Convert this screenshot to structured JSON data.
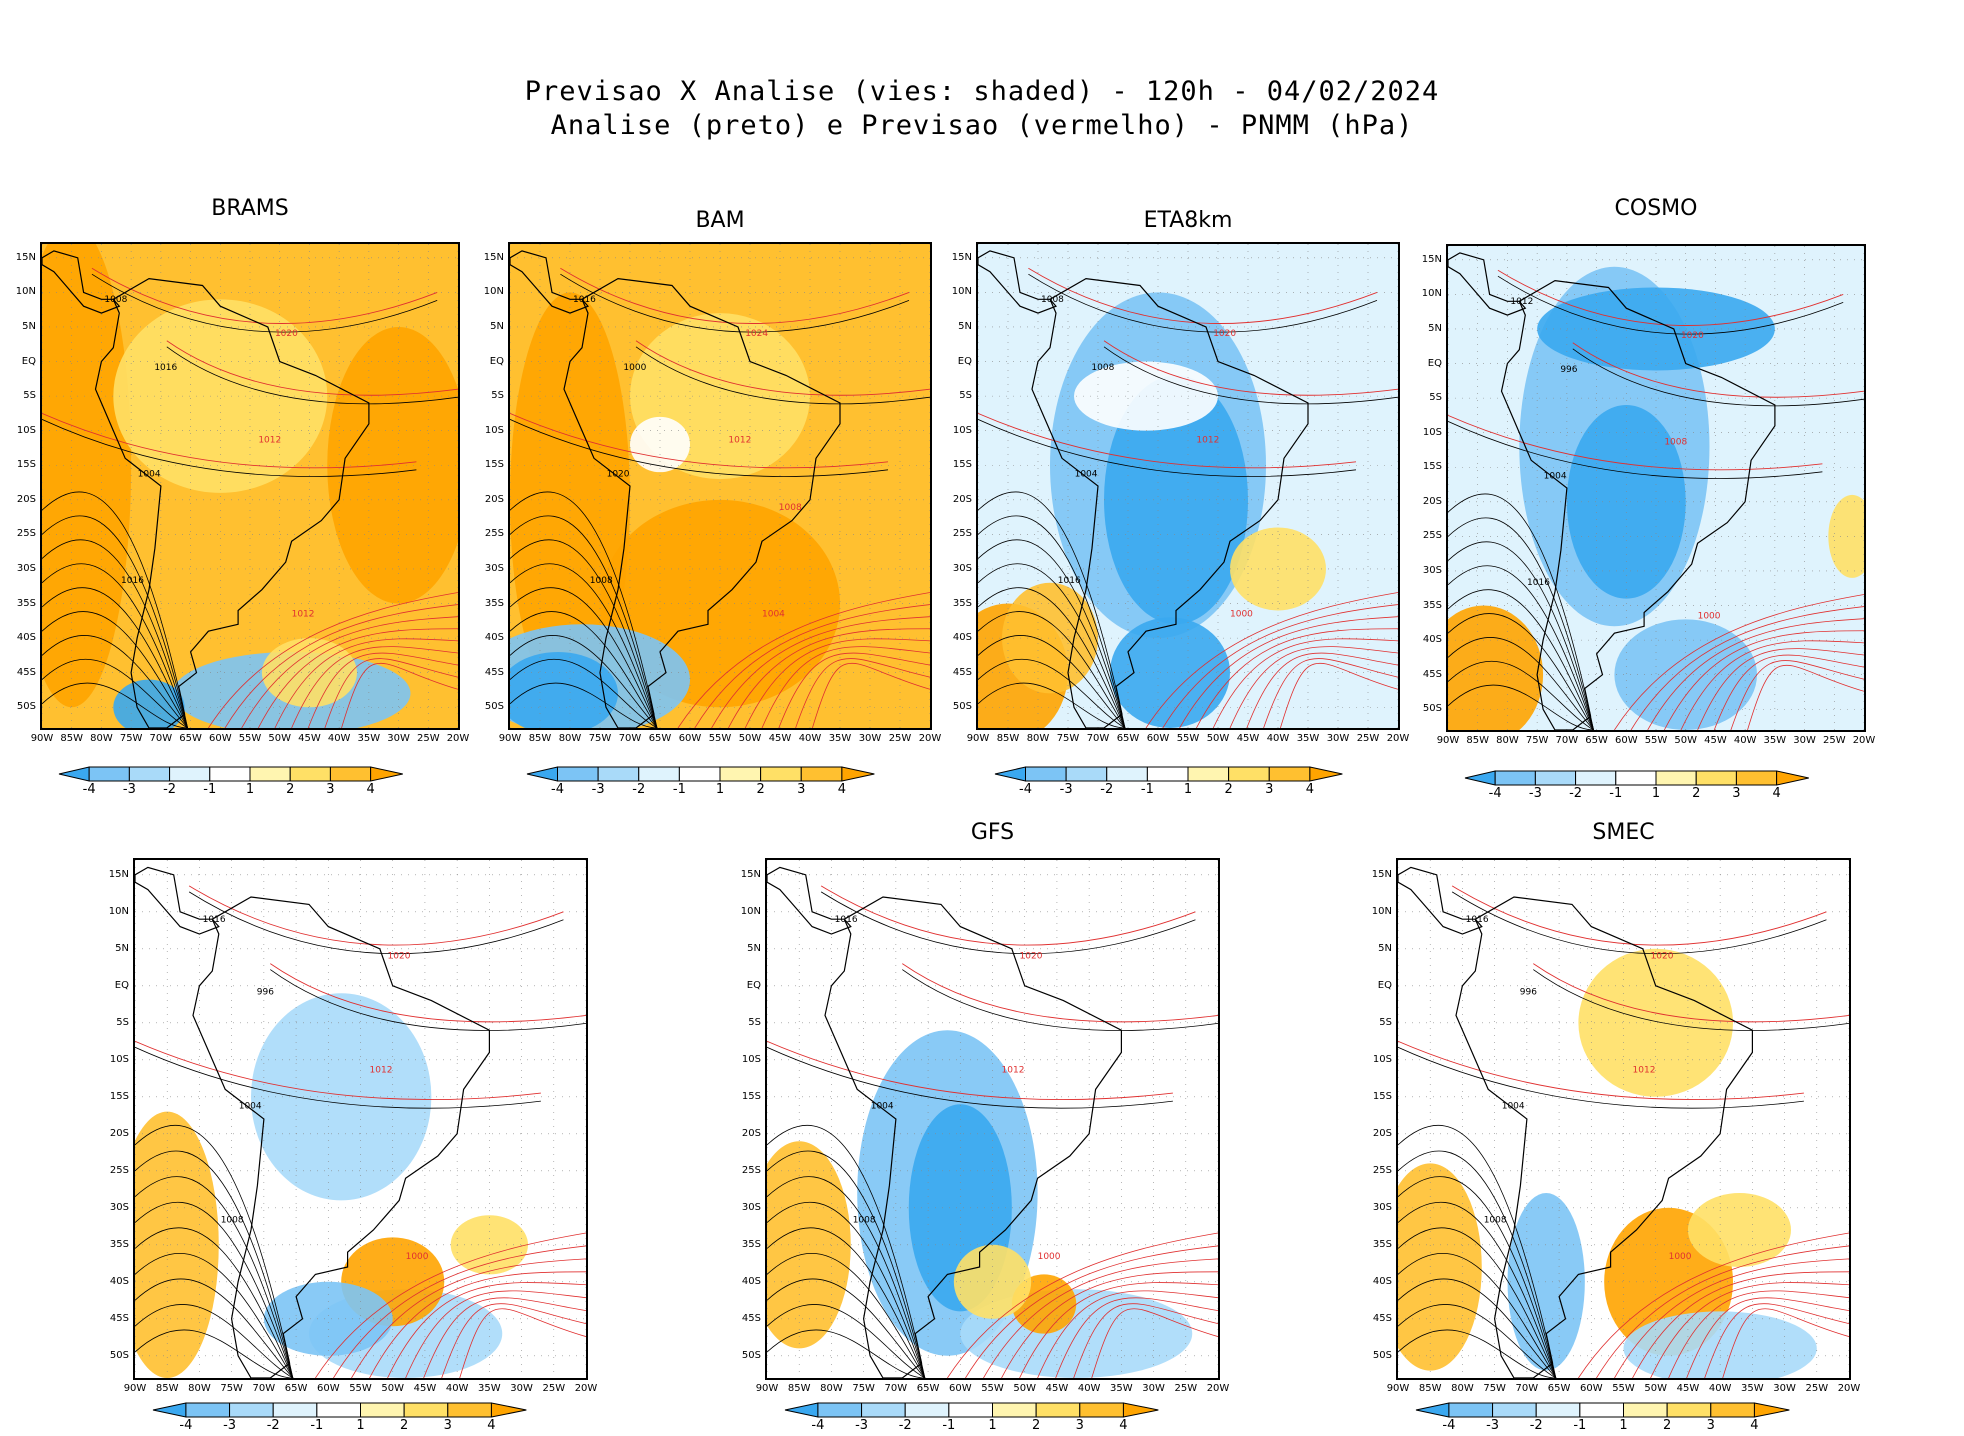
{
  "title": {
    "line1": "Previsao X Analise (vies: shaded) - 120h - 04/02/2024",
    "line2": "Analise (preto) e Previsao (vermelho) - PNMM (hPa)"
  },
  "axes": {
    "lat_ticks": [
      "15N",
      "10N",
      "5N",
      "EQ",
      "5S",
      "10S",
      "15S",
      "20S",
      "25S",
      "30S",
      "35S",
      "40S",
      "45S",
      "50S"
    ],
    "lon_ticks": [
      "90W",
      "85W",
      "80W",
      "75W",
      "70W",
      "65W",
      "60W",
      "55W",
      "50W",
      "45W",
      "40W",
      "35W",
      "30W",
      "25W",
      "20W"
    ]
  },
  "colorbar": {
    "labels": [
      "-4",
      "-3",
      "-2",
      "-1",
      "1",
      "2",
      "3",
      "4"
    ],
    "colors": [
      "#3aa8f0",
      "#7cc4f5",
      "#a9daf9",
      "#dff3fd",
      "#ffffff",
      "#fff5b0",
      "#ffe066",
      "#ffc030",
      "#ffa400"
    ]
  },
  "contour_colors": {
    "analysis": "#000000",
    "forecast": "#e03030"
  },
  "chart_data": [
    {
      "type": "heatmap",
      "model": "BRAMS",
      "title": "BRAMS",
      "bias_tendency": "positive",
      "isobars": [
        "1008",
        "1012",
        "1016",
        "1020",
        "1004",
        "1012",
        "1016"
      ]
    },
    {
      "type": "heatmap",
      "model": "BAM",
      "title": "BAM",
      "bias_tendency": "positive",
      "isobars": [
        "1016",
        "1012",
        "1008",
        "1024",
        "1020",
        "1004",
        "1000",
        "1008"
      ]
    },
    {
      "type": "heatmap",
      "model": "ETA8km",
      "title": "ETA8km",
      "bias_tendency": "negative",
      "isobars": [
        "1008",
        "1012",
        "1016",
        "1020",
        "1004",
        "1000",
        "1008"
      ]
    },
    {
      "type": "heatmap",
      "model": "COSMO",
      "title": "COSMO",
      "bias_tendency": "negative",
      "isobars": [
        "1012",
        "1008",
        "1016",
        "1020",
        "1004",
        "1000",
        "996"
      ]
    },
    {
      "type": "heatmap",
      "model": "",
      "title": "",
      "bias_tendency": "mixed",
      "isobars": [
        "1016",
        "1012",
        "1008",
        "1020",
        "1004",
        "1000",
        "996"
      ]
    },
    {
      "type": "heatmap",
      "model": "GFS",
      "title": "GFS",
      "bias_tendency": "negative",
      "isobars": [
        "1016",
        "1012",
        "1008",
        "1020",
        "1004",
        "1000"
      ]
    },
    {
      "type": "heatmap",
      "model": "SMEC",
      "title": "SMEC",
      "bias_tendency": "mixed",
      "isobars": [
        "1016",
        "1012",
        "1008",
        "1020",
        "1004",
        "1000",
        "996"
      ]
    }
  ]
}
